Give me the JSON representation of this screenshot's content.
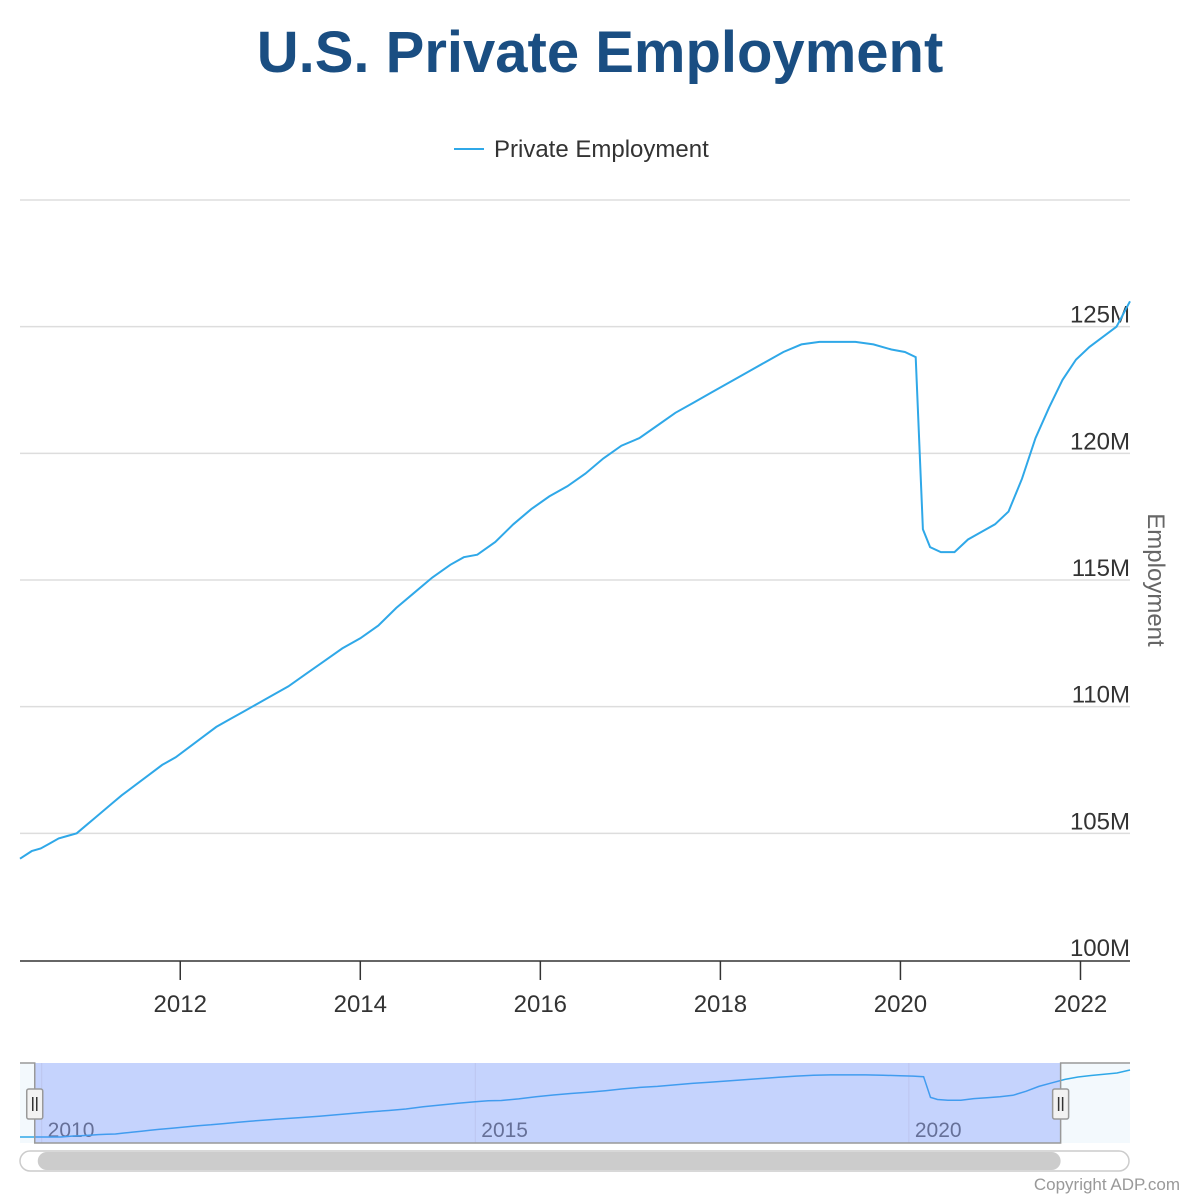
{
  "chart_data": {
    "type": "line",
    "title": "U.S. Private Employment",
    "legend": {
      "label": "Private Employment",
      "position": "top-center"
    },
    "ylabel": "Employment",
    "xlabel": "",
    "ylim": [
      100,
      130
    ],
    "y_ticks": [
      {
        "value": 100,
        "label": "100M"
      },
      {
        "value": 105,
        "label": "105M"
      },
      {
        "value": 110,
        "label": "110M"
      },
      {
        "value": 115,
        "label": "115M"
      },
      {
        "value": 120,
        "label": "120M"
      },
      {
        "value": 125,
        "label": "125M"
      }
    ],
    "x_range": [
      2010.22,
      2022.55
    ],
    "x_ticks": [
      {
        "value": 2012,
        "label": "2012"
      },
      {
        "value": 2014,
        "label": "2014"
      },
      {
        "value": 2016,
        "label": "2016"
      },
      {
        "value": 2018,
        "label": "2018"
      },
      {
        "value": 2020,
        "label": "2020"
      },
      {
        "value": 2022,
        "label": "2022"
      }
    ],
    "series": [
      {
        "name": "Private Employment",
        "color": "#2fa8e8",
        "x": [
          2010.22,
          2010.35,
          2010.45,
          2010.55,
          2010.65,
          2010.75,
          2010.85,
          2010.95,
          2011.05,
          2011.15,
          2011.25,
          2011.35,
          2011.5,
          2011.65,
          2011.8,
          2011.95,
          2012.1,
          2012.25,
          2012.4,
          2012.55,
          2012.7,
          2012.85,
          2013.0,
          2013.2,
          2013.4,
          2013.6,
          2013.8,
          2014.0,
          2014.2,
          2014.4,
          2014.6,
          2014.8,
          2015.0,
          2015.15,
          2015.3,
          2015.5,
          2015.7,
          2015.9,
          2016.1,
          2016.3,
          2016.5,
          2016.7,
          2016.9,
          2017.1,
          2017.3,
          2017.5,
          2017.7,
          2017.9,
          2018.1,
          2018.3,
          2018.5,
          2018.7,
          2018.9,
          2019.1,
          2019.3,
          2019.5,
          2019.7,
          2019.9,
          2020.05,
          2020.17,
          2020.25,
          2020.33,
          2020.45,
          2020.6,
          2020.75,
          2020.9,
          2021.05,
          2021.2,
          2021.35,
          2021.5,
          2021.65,
          2021.8,
          2021.95,
          2022.1,
          2022.25,
          2022.4,
          2022.55
        ],
        "y": [
          104.0,
          104.3,
          104.4,
          104.6,
          104.8,
          104.9,
          105.0,
          105.3,
          105.6,
          105.9,
          106.2,
          106.5,
          106.9,
          107.3,
          107.7,
          108.0,
          108.4,
          108.8,
          109.2,
          109.5,
          109.8,
          110.1,
          110.4,
          110.8,
          111.3,
          111.8,
          112.3,
          112.7,
          113.2,
          113.9,
          114.5,
          115.1,
          115.6,
          115.9,
          116.0,
          116.5,
          117.2,
          117.8,
          118.3,
          118.7,
          119.2,
          119.8,
          120.3,
          120.6,
          121.1,
          121.6,
          122.0,
          122.4,
          122.8,
          123.2,
          123.6,
          124.0,
          124.3,
          124.4,
          124.4,
          124.4,
          124.3,
          124.1,
          124.0,
          123.8,
          117.0,
          116.3,
          116.1,
          116.1,
          116.6,
          116.9,
          117.2,
          117.7,
          119.0,
          120.6,
          121.8,
          122.9,
          123.7,
          124.2,
          124.6,
          125.0,
          126.0
        ]
      }
    ],
    "navigator": {
      "x_range": [
        2009.75,
        2022.55
      ],
      "x_ticks": [
        {
          "value": 2010,
          "label": "2010"
        },
        {
          "value": 2015,
          "label": "2015"
        },
        {
          "value": 2020,
          "label": "2020"
        }
      ],
      "selected_range": [
        2009.92,
        2021.75
      ]
    },
    "credit": "Copyright ADP.com"
  },
  "colors": {
    "title": "#1a4e82",
    "series": "#2fa8e8",
    "grid": "#dddddd",
    "navigator_mask": "rgba(102,133,255,0.33)",
    "scrollbar": "#cccccc"
  }
}
